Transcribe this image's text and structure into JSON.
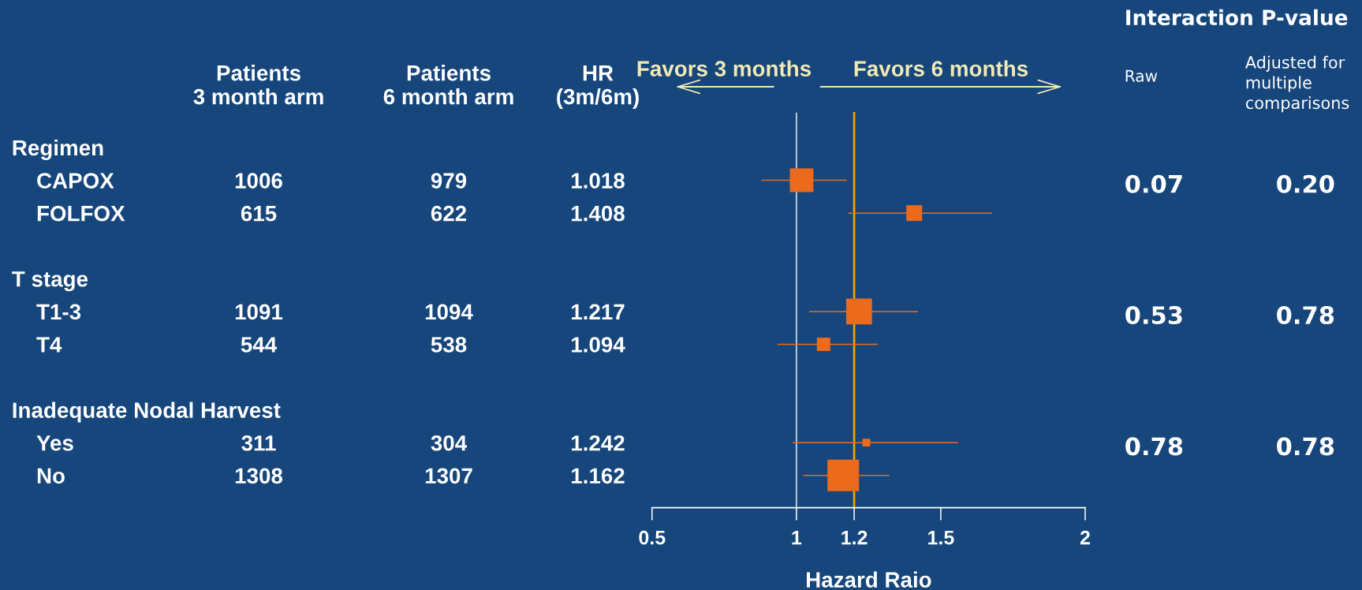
{
  "chart_data": {
    "type": "bubble",
    "orientation": "horizontal",
    "marker": "square",
    "color": "#ec6a1c",
    "categories": [
      null,
      null,
      null,
      null,
      null,
      null,
      null,
      null,
      null,
      null,
      null
    ],
    "values": [
      null,
      1.018,
      1.408,
      null,
      null,
      1.217,
      1.094,
      null,
      null,
      1.242,
      1.162
    ],
    "errors": [
      null,
      [
        0.879,
        1.175
      ],
      [
        1.179,
        1.678
      ],
      null,
      null,
      [
        1.044,
        1.421
      ],
      [
        0.934,
        1.282
      ],
      null,
      null,
      [
        0.987,
        1.56
      ],
      [
        1.023,
        1.322
      ]
    ],
    "sizes": [
      null,
      0.56,
      0.25,
      null,
      null,
      0.67,
      0.18,
      null,
      null,
      0.06,
      1
    ],
    "value_labels": [
      null,
      "1.018",
      "1.408",
      null,
      null,
      "1.217",
      "1.094",
      null,
      null,
      "1.242",
      "1.162"
    ],
    "xlim": [
      0.5,
      2
    ],
    "xticks": [
      0.5,
      1,
      1.2,
      1.5,
      2
    ],
    "xlabel": "Hazard Raio",
    "ref_lines": [
      {
        "axis": "x",
        "value": 1,
        "color": "#ffffff"
      },
      {
        "axis": "x",
        "value": 1.2,
        "color": "#f2a900"
      }
    ],
    "annotations": [
      "Patients\n3 month arm",
      "Patients\n6 month arm",
      "HR\n(3m/6m)",
      "Favors 3 months",
      "Favors 6 months",
      "Interaction P-value",
      "Raw",
      "Adjusted for\nmultiple\ncomparisons",
      "Regimen",
      "T stage",
      "Inadequate Nodal Harvest",
      "0.07",
      "0.20",
      "0.53",
      "0.78",
      "0.78",
      "0.78",
      "CAPOX",
      "1006",
      "979",
      "FOLFOX",
      "615",
      "622",
      "T1-3",
      "1091",
      "1094",
      "T4",
      "544",
      "538",
      "Yes",
      "311",
      "304",
      "No",
      "1308",
      "1307"
    ]
  }
}
